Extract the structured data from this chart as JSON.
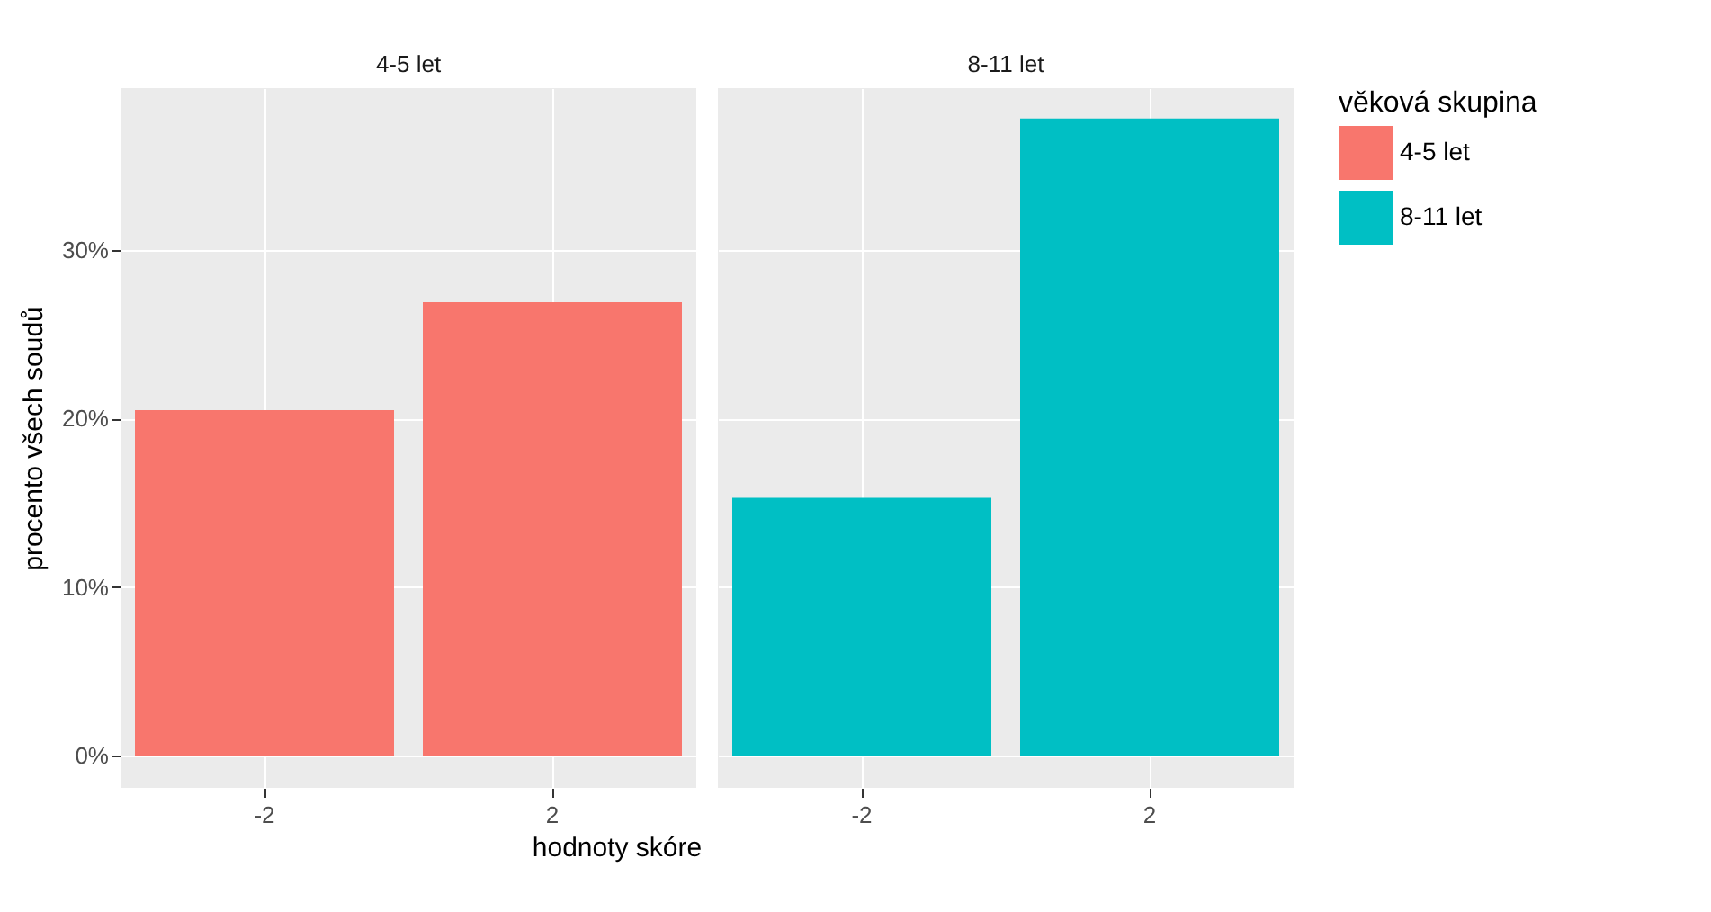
{
  "chart_data": [
    {
      "type": "bar",
      "title": "4-5 let",
      "ylabel": "procento všech soudů",
      "xlabel": "hodnoty skóre",
      "categories": [
        "-2",
        "2"
      ],
      "series": [
        {
          "name": "4-5 let",
          "color": "#f8766d",
          "values": [
            20.5,
            26.9
          ]
        }
      ],
      "ylim": [
        -1.9,
        39.6
      ],
      "yticks": [
        {
          "value": 0,
          "label": "0%"
        },
        {
          "value": 10,
          "label": "10%"
        },
        {
          "value": 20,
          "label": "20%"
        },
        {
          "value": 30,
          "label": "30%"
        }
      ],
      "grid": true
    },
    {
      "type": "bar",
      "title": "8-11 let",
      "categories": [
        "-2",
        "2"
      ],
      "series": [
        {
          "name": "8-11 let",
          "color": "#00bfc4",
          "values": [
            15.3,
            37.8
          ]
        }
      ],
      "ylim": [
        -1.9,
        39.6
      ],
      "yticks": [
        0,
        10,
        20,
        30
      ],
      "grid": true,
      "tick_labels": "x",
      "legend": "right",
      "legend_title": "věková skupina"
    }
  ]
}
